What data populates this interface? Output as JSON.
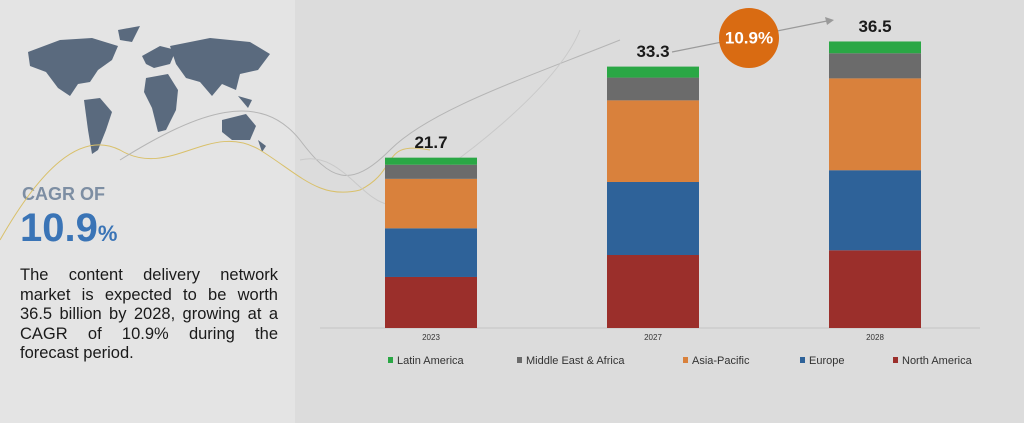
{
  "sidebar": {
    "heading": "CAGR OF",
    "cagr": "10.9",
    "cagr_unit": "%",
    "text": "The content delivery network market is expected to be worth 36.5 billion by 2028, growing at a CAGR of 10.9% during the forecast period."
  },
  "chart_data": {
    "type": "bar",
    "stacked": true,
    "categories": [
      "2023",
      "2027",
      "2028"
    ],
    "series": [
      {
        "name": "North America",
        "color": "#9b2f2b",
        "values": [
          6.5,
          9.3,
          9.9
        ]
      },
      {
        "name": "Europe",
        "color": "#2e6299",
        "values": [
          6.2,
          9.3,
          10.2
        ]
      },
      {
        "name": "Asia-Pacific",
        "color": "#d9813c",
        "values": [
          6.3,
          10.4,
          11.7
        ]
      },
      {
        "name": "Middle East & Africa",
        "color": "#6b6b6b",
        "values": [
          1.8,
          2.9,
          3.2
        ]
      },
      {
        "name": "Latin America",
        "color": "#2aa745",
        "values": [
          0.9,
          1.4,
          1.5
        ]
      }
    ],
    "totals": [
      21.7,
      33.3,
      36.5
    ],
    "annotation": "10.9%",
    "ylim": [
      0,
      40
    ]
  }
}
